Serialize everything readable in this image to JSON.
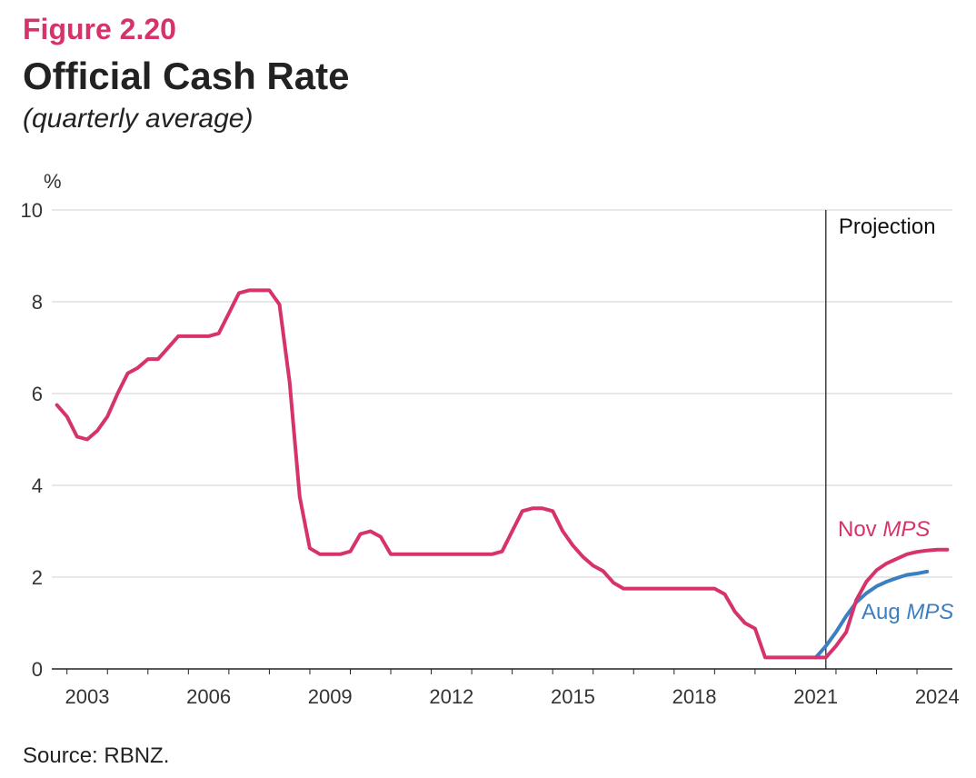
{
  "figure": {
    "label": "Figure 2.20",
    "title": "Official Cash Rate",
    "subtitle": "(quarterly average)",
    "source": "Source: RBNZ."
  },
  "chart_data": {
    "type": "line",
    "title": "Official Cash Rate",
    "subtitle": "(quarterly average)",
    "ylabel": "%",
    "xlabel": "",
    "ylim": [
      0,
      10
    ],
    "yticks": [
      0,
      2,
      4,
      6,
      8,
      10
    ],
    "xlim": [
      2002.625,
      2024.875
    ],
    "xtick_labels": [
      "2003",
      "2006",
      "2009",
      "2012",
      "2015",
      "2018",
      "2021",
      "2024"
    ],
    "xtick_values": [
      2003.5,
      2006.5,
      2009.5,
      2012.5,
      2015.5,
      2018.5,
      2021.5,
      2024.5
    ],
    "grid": true,
    "projection_start": 2021.75,
    "projection_label": "Projection",
    "colors": {
      "nov": "#d6336c",
      "aug": "#3a7fc1",
      "grid": "#d0d0d0",
      "axis": "#222222"
    },
    "series": [
      {
        "name": "Nov MPS",
        "label_main": "Nov ",
        "label_italic": "MPS",
        "color": "#d6336c",
        "x": [
          2002.75,
          2003.0,
          2003.25,
          2003.5,
          2003.75,
          2004.0,
          2004.25,
          2004.5,
          2004.75,
          2005.0,
          2005.25,
          2005.5,
          2005.75,
          2006.0,
          2006.25,
          2006.5,
          2006.75,
          2007.0,
          2007.25,
          2007.5,
          2007.75,
          2008.0,
          2008.25,
          2008.5,
          2008.75,
          2009.0,
          2009.25,
          2009.5,
          2009.75,
          2010.0,
          2010.25,
          2010.5,
          2010.75,
          2011.0,
          2011.25,
          2011.5,
          2011.75,
          2012.0,
          2012.25,
          2012.5,
          2012.75,
          2013.0,
          2013.25,
          2013.5,
          2013.75,
          2014.0,
          2014.25,
          2014.5,
          2014.75,
          2015.0,
          2015.25,
          2015.5,
          2015.75,
          2016.0,
          2016.25,
          2016.5,
          2016.75,
          2017.0,
          2017.25,
          2017.5,
          2017.75,
          2018.0,
          2018.25,
          2018.5,
          2018.75,
          2019.0,
          2019.25,
          2019.5,
          2019.75,
          2020.0,
          2020.25,
          2020.5,
          2020.75,
          2021.0,
          2021.25,
          2021.5,
          2021.75,
          2022.0,
          2022.25,
          2022.5,
          2022.75,
          2023.0,
          2023.25,
          2023.5,
          2023.75,
          2024.0,
          2024.25,
          2024.5,
          2024.75
        ],
        "values": [
          5.75,
          5.5,
          5.06,
          5.0,
          5.19,
          5.5,
          6.0,
          6.44,
          6.56,
          6.75,
          6.75,
          7.0,
          7.25,
          7.25,
          7.25,
          7.25,
          7.31,
          7.75,
          8.19,
          8.25,
          8.25,
          8.25,
          7.94,
          6.25,
          3.75,
          2.63,
          2.5,
          2.5,
          2.5,
          2.56,
          2.94,
          3.0,
          2.88,
          2.5,
          2.5,
          2.5,
          2.5,
          2.5,
          2.5,
          2.5,
          2.5,
          2.5,
          2.5,
          2.5,
          2.56,
          3.0,
          3.44,
          3.5,
          3.5,
          3.44,
          3.0,
          2.69,
          2.44,
          2.25,
          2.13,
          1.88,
          1.75,
          1.75,
          1.75,
          1.75,
          1.75,
          1.75,
          1.75,
          1.75,
          1.75,
          1.75,
          1.63,
          1.25,
          1.0,
          0.88,
          0.25,
          0.25,
          0.25,
          0.25,
          0.25,
          0.25,
          0.25,
          0.5,
          0.8,
          1.5,
          1.9,
          2.15,
          2.3,
          2.4,
          2.5,
          2.55,
          2.58,
          2.6,
          2.6
        ]
      },
      {
        "name": "Aug MPS",
        "label_main": "Aug ",
        "label_italic": "MPS",
        "color": "#3a7fc1",
        "x": [
          2021.5,
          2021.75,
          2022.0,
          2022.25,
          2022.5,
          2022.75,
          2023.0,
          2023.25,
          2023.5,
          2023.75,
          2024.0,
          2024.25
        ],
        "values": [
          0.25,
          0.5,
          0.8,
          1.15,
          1.45,
          1.65,
          1.8,
          1.9,
          1.98,
          2.05,
          2.08,
          2.12
        ]
      }
    ]
  }
}
